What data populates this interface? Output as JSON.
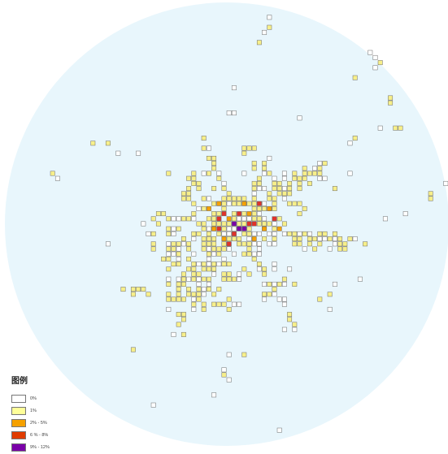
{
  "legend": {
    "title": "图例",
    "items": [
      {
        "label": "0%",
        "color": "#ffffff"
      },
      {
        "label": "1%",
        "color": "#ffff99"
      },
      {
        "label": "2% - 5%",
        "color": "#f5a100"
      },
      {
        "label": "6 % - 8%",
        "color": "#e03c00"
      },
      {
        "label": "9% - 12%",
        "color": "#7a00a8"
      }
    ]
  },
  "colors": {
    "background_disk": "#e8f6fc",
    "cell_zero": "#ffffff",
    "cell_low": "#f7ef8a",
    "cell_border": "#6b6b6b",
    "cell_mid": "#f5a100",
    "cell_high": "#e0322a",
    "cell_top": "#7a00a8"
  }
}
